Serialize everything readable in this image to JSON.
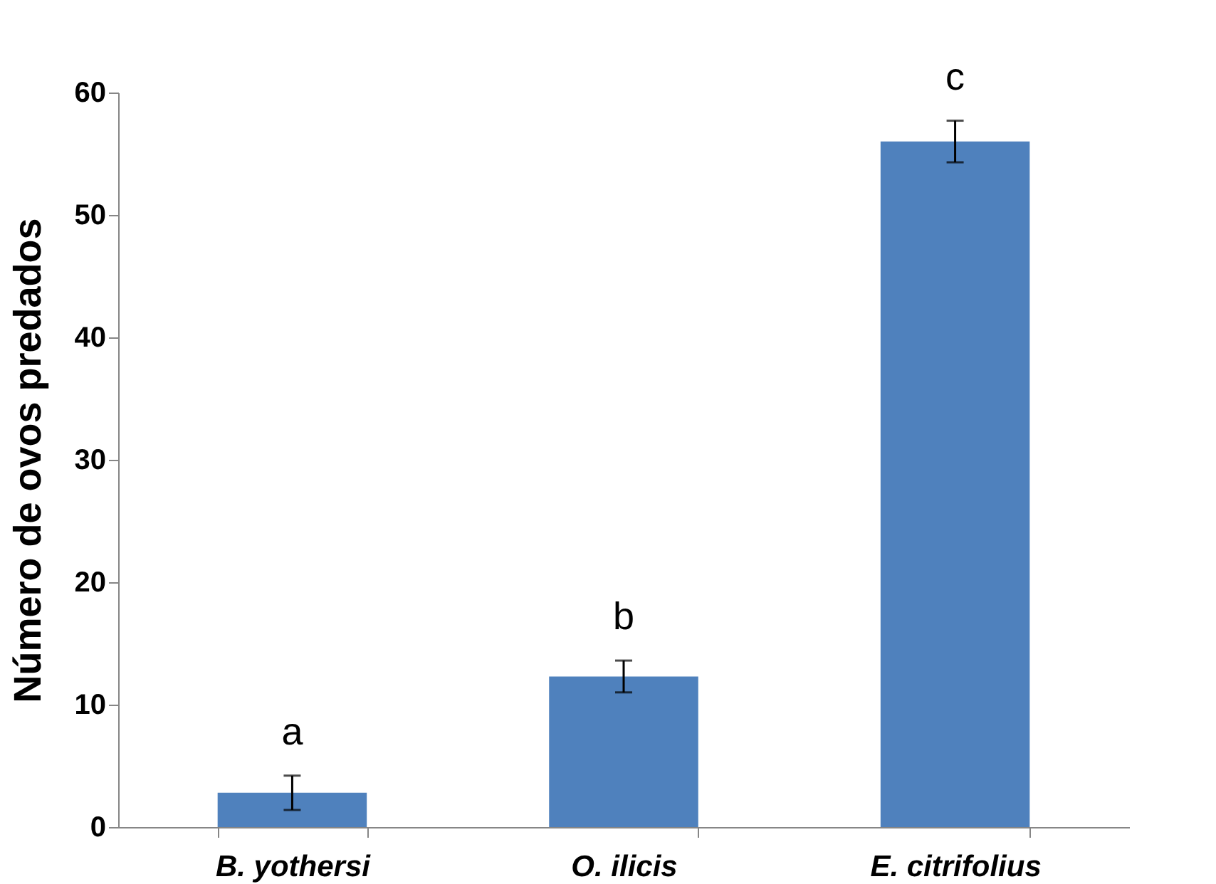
{
  "chart_data": {
    "type": "bar",
    "ylabel": "Número de ovos predados",
    "categories": [
      "B. yothersi",
      "O. ilicis",
      "E. citrifolius"
    ],
    "series": [
      {
        "color": "#4f81bd",
        "values": [
          2.8,
          12.3,
          56.0
        ],
        "errors": [
          1.4,
          1.3,
          1.7
        ]
      }
    ],
    "ylim": [
      0,
      60
    ],
    "yticks": [
      0,
      10,
      20,
      30,
      40,
      50,
      60
    ],
    "grid": false,
    "annotations": [
      "a",
      "b",
      "c"
    ]
  }
}
